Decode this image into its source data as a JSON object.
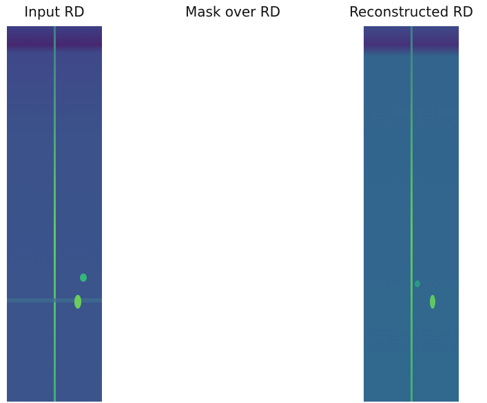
{
  "panels": [
    {
      "title": "Input RD"
    },
    {
      "title": "Mask over RD"
    },
    {
      "title": "Reconstructed RD"
    }
  ]
}
